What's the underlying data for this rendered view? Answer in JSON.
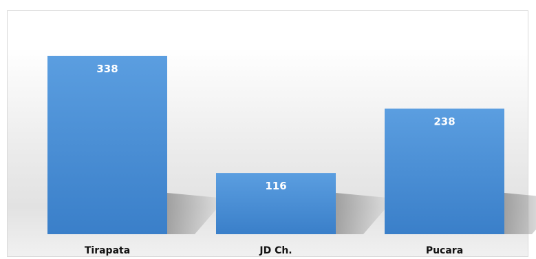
{
  "chart_data": {
    "type": "bar",
    "categories": [
      "Tirapata",
      "JD Ch.",
      "Pucara"
    ],
    "values": [
      338,
      116,
      238
    ],
    "title": "",
    "xlabel": "",
    "ylabel": "",
    "ylim": [
      0,
      338
    ],
    "grid": false,
    "legend": "none",
    "bar_color": "#4a8fd4",
    "bar_color_light": "#5b9ee0",
    "bar_color_dark": "#3a7fc9",
    "label_color": "#ffffff",
    "category_label_color": "#111111"
  }
}
